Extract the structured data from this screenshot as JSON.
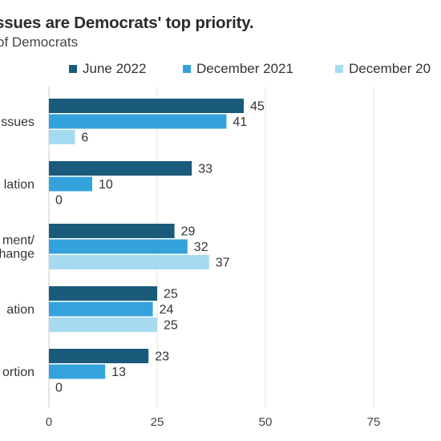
{
  "title": "ssues are Democrats' top priority.",
  "subtitle": "of Democrats",
  "colors": {
    "June 2022": "#1a5a7a",
    "December 2021": "#34a3db",
    "December 20": "#a6daf1"
  },
  "chart_data": {
    "type": "bar",
    "orientation": "horizontal",
    "title": "ssues are Democrats' top priority.",
    "subtitle": "of Democrats",
    "categories": [
      "ssues",
      "lation",
      "ment/\nhange",
      "ation",
      "ortion"
    ],
    "series": [
      {
        "name": "June 2022",
        "color": "#1a5a7a",
        "values": [
          45,
          33,
          29,
          25,
          23
        ]
      },
      {
        "name": "December 2021",
        "color": "#34a3db",
        "values": [
          41,
          10,
          32,
          24,
          13
        ]
      },
      {
        "name": "December 20",
        "color": "#a6daf1",
        "values": [
          6,
          0,
          37,
          25,
          0
        ]
      }
    ],
    "x_ticks": [
      0,
      25,
      50,
      75
    ],
    "xlim": [
      0,
      100
    ],
    "grid": true,
    "legend_position": "top"
  }
}
